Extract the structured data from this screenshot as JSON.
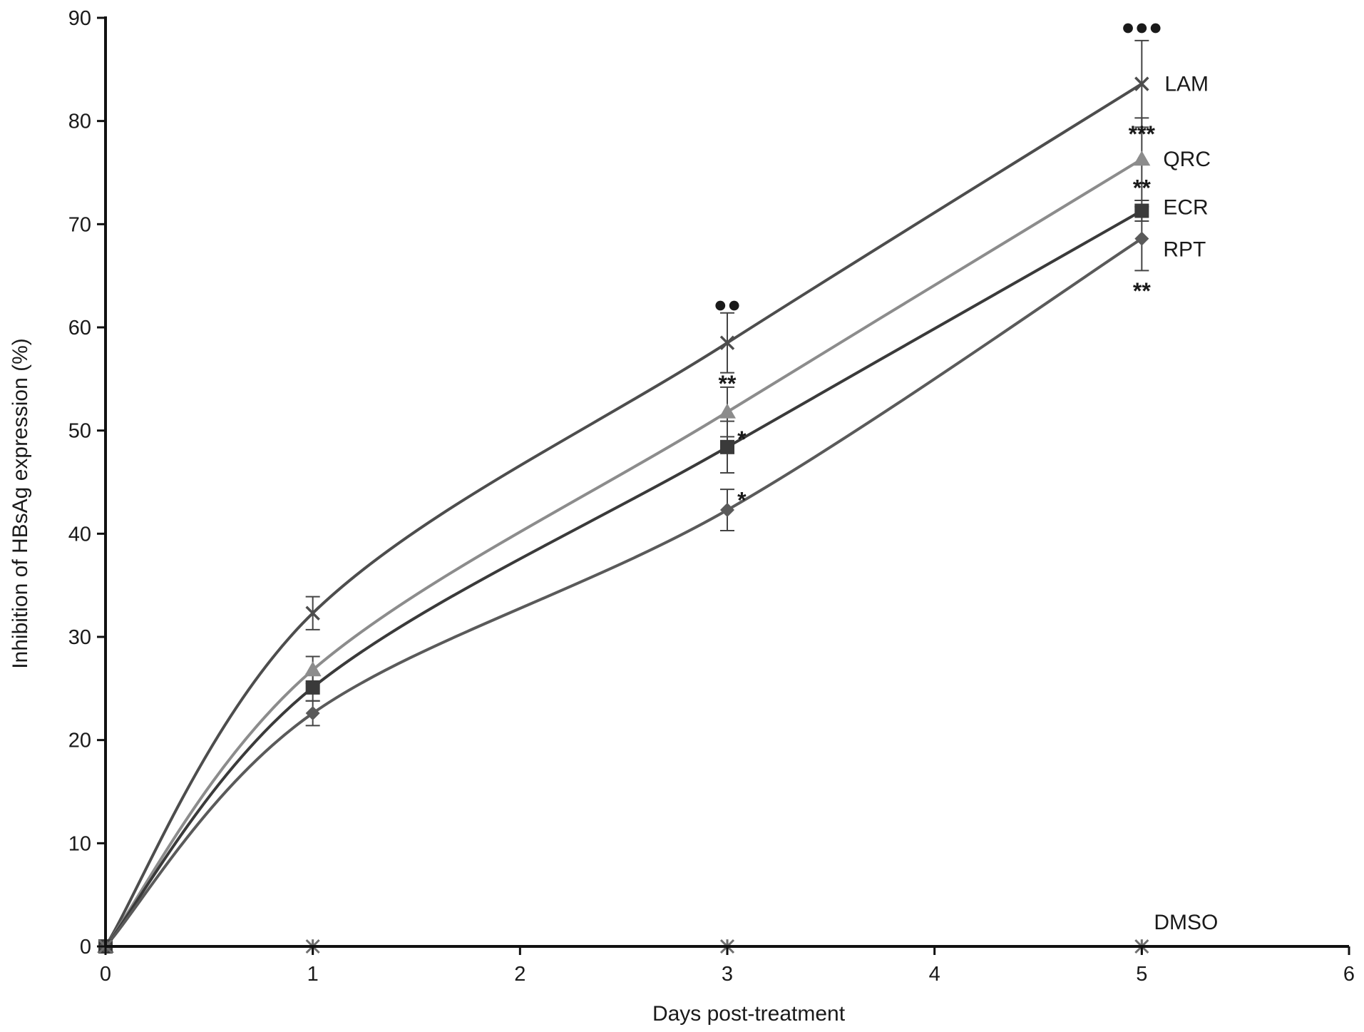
{
  "chart_data": {
    "type": "line",
    "xlabel": "Days post-treatment",
    "ylabel": "Inhibition of HBsAg expression (%)",
    "xlim": [
      0,
      6
    ],
    "ylim": [
      0,
      90
    ],
    "x_ticks": [
      "0",
      "1",
      "2",
      "3",
      "4",
      "5",
      "6"
    ],
    "y_ticks": [
      "0",
      "10",
      "20",
      "30",
      "40",
      "50",
      "60",
      "70",
      "80",
      "90"
    ],
    "grid": false,
    "legend": "labels at line ends",
    "series": [
      {
        "name": "LAM",
        "marker": "x",
        "color": "#4d4d4d",
        "x": [
          0,
          1,
          3,
          5
        ],
        "y": [
          0,
          32.3,
          58.5,
          83.6
        ],
        "err": [
          0,
          1.6,
          2.9,
          4.2
        ]
      },
      {
        "name": "QRC",
        "marker": "triangle",
        "color": "#8c8c8c",
        "x": [
          0,
          1,
          3,
          5
        ],
        "y": [
          0,
          26.8,
          51.8,
          76.3
        ],
        "err": [
          0,
          1.3,
          2.4,
          4.0
        ]
      },
      {
        "name": "ECR",
        "marker": "square",
        "color": "#3a3a3a",
        "x": [
          0,
          1,
          3,
          5
        ],
        "y": [
          0,
          25.1,
          48.4,
          71.3
        ],
        "err": [
          0,
          1.3,
          2.5,
          1.0
        ]
      },
      {
        "name": "RPT",
        "marker": "diamond",
        "color": "#5a5a5a",
        "x": [
          0,
          1,
          3,
          5
        ],
        "y": [
          0,
          22.6,
          42.3,
          68.6
        ],
        "err": [
          0,
          1.2,
          2.0,
          3.1
        ]
      },
      {
        "name": "DMSO",
        "marker": "star",
        "color": "#6e6e6e",
        "x": [
          0,
          1,
          3,
          5
        ],
        "y": [
          0,
          0,
          0,
          0
        ],
        "err": [
          0,
          0,
          0,
          0
        ]
      }
    ],
    "annotations": [
      {
        "text": "●●●",
        "x": 5,
        "y": 89.2
      },
      {
        "text": "***",
        "x": 5,
        "y": 78.8
      },
      {
        "text": "**",
        "x": 5,
        "y": 73.6
      },
      {
        "text": "**",
        "x": 5,
        "y": 63.6
      },
      {
        "text": "●●",
        "x": 3,
        "y": 62.3
      },
      {
        "text": "**",
        "x": 3,
        "y": 54.6
      },
      {
        "text": "*",
        "x": 3.07,
        "y": 49.2
      },
      {
        "text": "*",
        "x": 3.07,
        "y": 43.3
      }
    ]
  }
}
